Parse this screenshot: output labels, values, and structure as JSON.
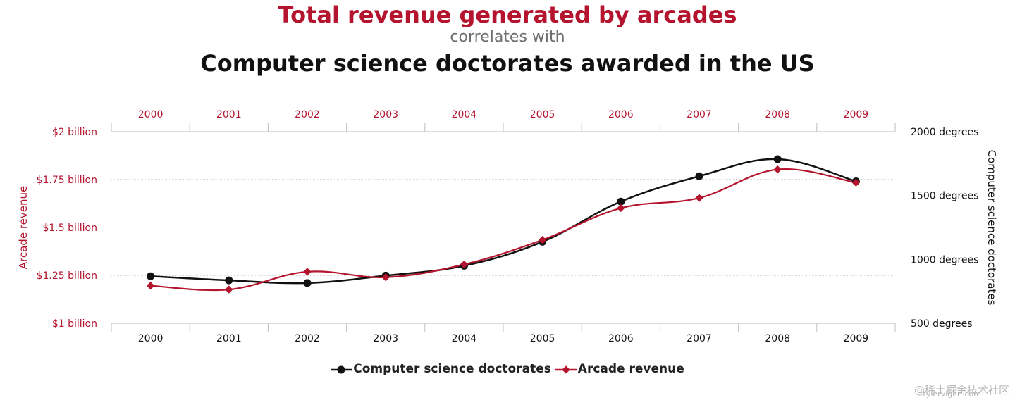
{
  "colors": {
    "series_a": "#111111",
    "series_b": "#b5142e",
    "grid": "#b8b8b8",
    "axis": "#c8c8c8",
    "left_axis_text": "#b5142e",
    "right_axis_text": "#111111"
  },
  "chart_data": {
    "type": "line",
    "title": "Total revenue generated by arcades",
    "subtitle": "correlates with",
    "title2": "Computer science doctorates awarded in the US",
    "x": [
      "2000",
      "2001",
      "2002",
      "2003",
      "2004",
      "2005",
      "2006",
      "2007",
      "2008",
      "2009"
    ],
    "left_axis": {
      "label": "Arcade revenue",
      "range": [
        1.0,
        2.0
      ],
      "ticks": [
        2.0,
        1.75,
        1.5,
        1.25,
        1.0
      ],
      "tick_labels": [
        "$2 billion",
        "$1.75 billion",
        "$1.5 billion",
        "$1.25 billion",
        "$1 billion"
      ]
    },
    "right_axis": {
      "label": "Computer science doctorates",
      "range": [
        500,
        2000
      ],
      "ticks": [
        2000,
        1500,
        1000,
        500
      ],
      "tick_labels": [
        "2000 degrees",
        "1500 degrees",
        "1000 degrees",
        "500 degrees"
      ]
    },
    "series": [
      {
        "name": "Computer science doctorates",
        "axis": "right",
        "values": [
          868,
          836,
          815,
          873,
          950,
          1138,
          1453,
          1651,
          1785,
          1611
        ]
      },
      {
        "name": "Arcade revenue",
        "axis": "left",
        "values": [
          1.196,
          1.176,
          1.269,
          1.24,
          1.307,
          1.435,
          1.601,
          1.654,
          1.803,
          1.734
        ]
      }
    ],
    "grid": true,
    "legend_position": "bottom"
  },
  "watermark": "@稀土掘金技术社区",
  "watermark_site": "tylervigen.com"
}
